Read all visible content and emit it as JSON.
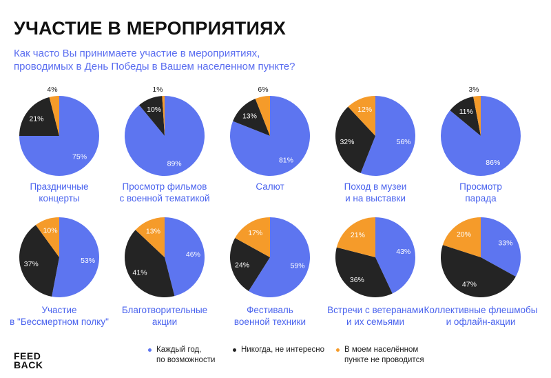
{
  "title": "УЧАСТИЕ В МЕРОПРИЯТИЯХ",
  "subtitle_lines": [
    "Как часто Вы принимаете участие в мероприятиях,",
    "проводимых в День Победы в Вашем населенном пункте?"
  ],
  "colors": {
    "every_year": "#5d75f0",
    "never": "#242424",
    "not_held": "#f59b2a",
    "label": "#4a63ee"
  },
  "legend": [
    {
      "lines": [
        "Каждый год,",
        "по возможности"
      ],
      "color": "#5d75f0"
    },
    {
      "lines": [
        "Никогда, не интересно"
      ],
      "color": "#242424"
    },
    {
      "lines": [
        "В моем населённом",
        "пункте не проводится"
      ],
      "color": "#f59b2a"
    }
  ],
  "logo": {
    "line1": "FEED",
    "line2": "BACK"
  },
  "chart_data": [
    {
      "type": "pie",
      "title_lines": [
        "Праздничные",
        "концерты"
      ],
      "categories": [
        "Каждый год, по возможности",
        "Никогда, не интересно",
        "В моем населённом пункте не проводится"
      ],
      "values": [
        75,
        21,
        4
      ],
      "labels": [
        "75%",
        "21%",
        "4%"
      ]
    },
    {
      "type": "pie",
      "title_lines": [
        "Просмотр фильмов",
        "с военной тематикой"
      ],
      "categories": [
        "Каждый год, по возможности",
        "Никогда, не интересно",
        "В моем населённом пункте не проводится"
      ],
      "values": [
        89,
        10,
        1
      ],
      "labels": [
        "89%",
        "10%",
        "1%"
      ]
    },
    {
      "type": "pie",
      "title_lines": [
        "Салют"
      ],
      "categories": [
        "Каждый год, по возможности",
        "Никогда, не интересно",
        "В моем населённом пункте не проводится"
      ],
      "values": [
        81,
        13,
        6
      ],
      "labels": [
        "81%",
        "13%",
        "6%"
      ]
    },
    {
      "type": "pie",
      "title_lines": [
        "Поход в музеи",
        "и на выставки"
      ],
      "categories": [
        "Каждый год, по возможности",
        "Никогда, не интересно",
        "В моем населённом пункте не проводится"
      ],
      "values": [
        56,
        32,
        12
      ],
      "labels": [
        "56%",
        "32%",
        "12%"
      ]
    },
    {
      "type": "pie",
      "title_lines": [
        "Просмотр",
        "парада"
      ],
      "categories": [
        "Каждый год, по возможности",
        "Никогда, не интересно",
        "В моем населённом пункте не проводится"
      ],
      "values": [
        86,
        11,
        3
      ],
      "labels": [
        "86%",
        "11%",
        "3%"
      ]
    },
    {
      "type": "pie",
      "title_lines": [
        "Участие",
        "в \"Бессмертном полку\""
      ],
      "categories": [
        "Каждый год, по возможности",
        "Никогда, не интересно",
        "В моем населённом пункте не проводится"
      ],
      "values": [
        53,
        37,
        10
      ],
      "labels": [
        "53%",
        "37%",
        "10%"
      ]
    },
    {
      "type": "pie",
      "title_lines": [
        "Благотворительные",
        "акции"
      ],
      "categories": [
        "Каждый год, по возможности",
        "Никогда, не интересно",
        "В моем населённом пункте не проводится"
      ],
      "values": [
        46,
        41,
        13
      ],
      "labels": [
        "46%",
        "41%",
        "13%"
      ]
    },
    {
      "type": "pie",
      "title_lines": [
        "Фестиваль",
        "военной техники"
      ],
      "categories": [
        "Каждый год, по возможности",
        "Никогда, не интересно",
        "В моем населённом пункте не проводится"
      ],
      "values": [
        59,
        24,
        17
      ],
      "labels": [
        "59%",
        "24%",
        "17%"
      ]
    },
    {
      "type": "pie",
      "title_lines": [
        "Встречи с ветеранами",
        "и их семьями"
      ],
      "categories": [
        "Каждый год, по возможности",
        "Никогда, не интересно",
        "В моем населённом пункте не проводится"
      ],
      "values": [
        43,
        36,
        21
      ],
      "labels": [
        "43%",
        "36%",
        "21%"
      ]
    },
    {
      "type": "pie",
      "title_lines": [
        "Коллективные флешмобы",
        "и офлайн-акции"
      ],
      "categories": [
        "Каждый год, по возможности",
        "Никогда, не интересно",
        "В моем населённом пункте не проводится"
      ],
      "values": [
        33,
        47,
        20
      ],
      "labels": [
        "33%",
        "47%",
        "20%"
      ]
    }
  ]
}
